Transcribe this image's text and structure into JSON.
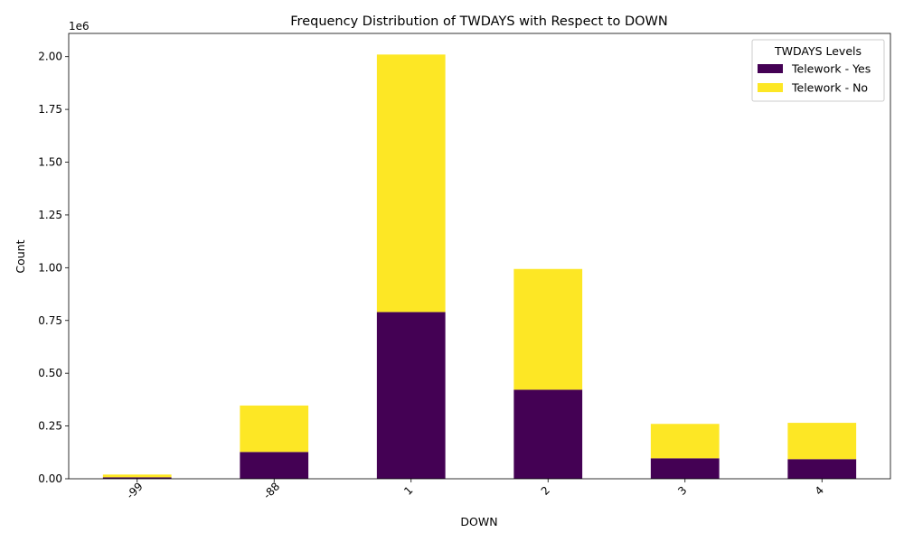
{
  "chart_data": {
    "type": "bar",
    "stacked": true,
    "title": "Frequency Distribution of TWDAYS with Respect to DOWN",
    "xlabel": "DOWN",
    "ylabel": "Count",
    "y_multiplier_label": "1e6",
    "ylim": [
      0,
      2.11
    ],
    "y_ticks": [
      "0.00",
      "0.25",
      "0.50",
      "0.75",
      "1.00",
      "1.25",
      "1.50",
      "1.75",
      "2.00"
    ],
    "categories": [
      "-99",
      "-88",
      "1",
      "2",
      "3",
      "4"
    ],
    "legend_title": "TWDAYS Levels",
    "legend_position": "top-right",
    "grid": false,
    "series": [
      {
        "name": "Telework - Yes",
        "color": "#440154",
        "values": [
          0.007,
          0.127,
          0.79,
          0.422,
          0.097,
          0.093
        ]
      },
      {
        "name": "Telework - No",
        "color": "#fde725",
        "values": [
          0.013,
          0.22,
          1.22,
          0.572,
          0.163,
          0.172
        ]
      }
    ]
  }
}
